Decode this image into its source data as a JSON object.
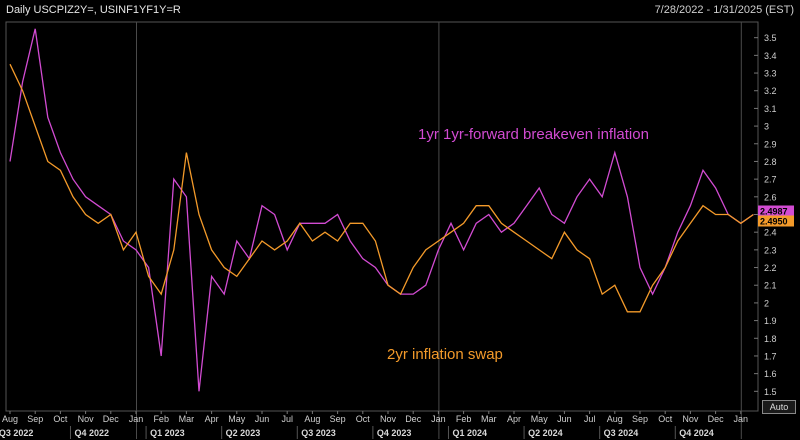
{
  "header": {
    "title": "Daily USCPIZ2Y=, USINF1YF1Y=R",
    "range": "7/28/2022 - 1/31/2025 (EST)"
  },
  "controls": {
    "auto_label": "Auto"
  },
  "chart_data": {
    "type": "line",
    "y_axis_side": "right",
    "ylim": [
      1.4,
      3.6
    ],
    "yticks": [
      1.5,
      1.6,
      1.7,
      1.8,
      1.9,
      2,
      2.1,
      2.2,
      2.3,
      2.4,
      2.5,
      2.6,
      2.7,
      2.8,
      2.9,
      3,
      3.1,
      3.2,
      3.3,
      3.4,
      3.5
    ],
    "month_labels": [
      "Aug",
      "Sep",
      "Oct",
      "Nov",
      "Dec",
      "Jan",
      "Feb",
      "Mar",
      "Apr",
      "May",
      "Jun",
      "Jul",
      "Aug",
      "Sep",
      "Oct",
      "Nov",
      "Dec",
      "Jan",
      "Feb",
      "Mar",
      "Apr",
      "May",
      "Jun",
      "Jul",
      "Aug",
      "Sep",
      "Oct",
      "Nov",
      "Dec",
      "Jan"
    ],
    "quarter_labels": [
      "Q3 2022",
      "Q4 2022",
      "Q1 2023",
      "Q2 2023",
      "Q3 2023",
      "Q4 2023",
      "Q1 2024",
      "Q2 2024",
      "Q3 2024",
      "Q4 2024"
    ],
    "year_dividers": [
      "Jan",
      "Jan"
    ],
    "annotations": [
      {
        "text": "1yr 1yr-forward breakeven inflation",
        "color": "#d24bd2"
      },
      {
        "text": "2yr inflation swap",
        "color": "#f39a2a"
      }
    ],
    "series": [
      {
        "name": "1yr 1yr-forward breakeven inflation",
        "color": "#d24bd2",
        "last_value": "2.4987",
        "x_month_index": [
          0,
          0.5,
          1,
          1.5,
          2,
          2.5,
          3,
          3.5,
          4,
          4.5,
          5,
          5.5,
          6,
          6.5,
          7,
          7.5,
          8,
          8.5,
          9,
          9.5,
          10,
          10.5,
          11,
          11.5,
          12,
          12.5,
          13,
          13.5,
          14,
          14.5,
          15,
          15.5,
          16,
          16.5,
          17,
          17.5,
          18,
          18.5,
          19,
          19.5,
          20,
          20.5,
          21,
          21.5,
          22,
          22.5,
          23,
          23.5,
          24,
          24.5,
          25,
          25.5,
          26,
          26.5,
          27,
          27.5,
          28,
          28.5,
          29,
          29.5
        ],
        "y": [
          2.8,
          3.25,
          3.55,
          3.05,
          2.85,
          2.7,
          2.6,
          2.55,
          2.5,
          2.35,
          2.3,
          2.2,
          1.7,
          2.7,
          2.6,
          1.5,
          2.15,
          2.05,
          2.35,
          2.25,
          2.55,
          2.5,
          2.3,
          2.45,
          2.45,
          2.45,
          2.5,
          2.35,
          2.25,
          2.2,
          2.1,
          2.05,
          2.05,
          2.1,
          2.3,
          2.45,
          2.3,
          2.45,
          2.5,
          2.4,
          2.45,
          2.55,
          2.65,
          2.5,
          2.45,
          2.6,
          2.7,
          2.6,
          2.85,
          2.6,
          2.2,
          2.05,
          2.2,
          2.4,
          2.55,
          2.75,
          2.65,
          2.5,
          2.45,
          2.5
        ]
      },
      {
        "name": "2yr inflation swap",
        "color": "#f39a2a",
        "last_value": "2.4950",
        "x_month_index": [
          0,
          0.5,
          1,
          1.5,
          2,
          2.5,
          3,
          3.5,
          4,
          4.5,
          5,
          5.5,
          6,
          6.5,
          7,
          7.5,
          8,
          8.5,
          9,
          9.5,
          10,
          10.5,
          11,
          11.5,
          12,
          12.5,
          13,
          13.5,
          14,
          14.5,
          15,
          15.5,
          16,
          16.5,
          17,
          17.5,
          18,
          18.5,
          19,
          19.5,
          20,
          20.5,
          21,
          21.5,
          22,
          22.5,
          23,
          23.5,
          24,
          24.5,
          25,
          25.5,
          26,
          26.5,
          27,
          27.5,
          28,
          28.5,
          29,
          29.5
        ],
        "y": [
          3.35,
          3.2,
          3.0,
          2.8,
          2.75,
          2.6,
          2.5,
          2.45,
          2.5,
          2.3,
          2.4,
          2.15,
          2.05,
          2.3,
          2.85,
          2.5,
          2.3,
          2.2,
          2.15,
          2.25,
          2.35,
          2.3,
          2.35,
          2.45,
          2.35,
          2.4,
          2.35,
          2.45,
          2.45,
          2.35,
          2.1,
          2.05,
          2.2,
          2.3,
          2.35,
          2.4,
          2.45,
          2.55,
          2.55,
          2.45,
          2.4,
          2.35,
          2.3,
          2.25,
          2.4,
          2.3,
          2.25,
          2.05,
          2.1,
          1.95,
          1.95,
          2.1,
          2.2,
          2.35,
          2.45,
          2.55,
          2.5,
          2.5,
          2.45,
          2.5
        ]
      }
    ]
  }
}
